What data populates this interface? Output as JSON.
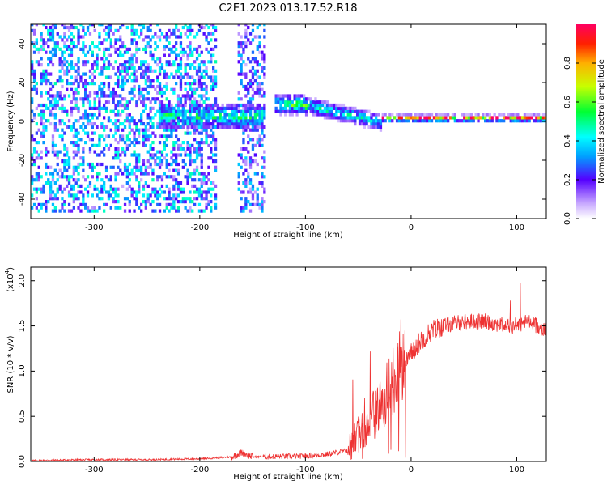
{
  "title": "C2E1.2023.013.17.52.R18",
  "chart_data": [
    {
      "type": "heatmap",
      "xlabel": "Height of straight line (km)",
      "ylabel": "Frequency (Hz)",
      "xlim": [
        -360,
        128
      ],
      "ylim": [
        -50,
        50
      ],
      "xticks": [
        -300,
        -200,
        -100,
        0,
        100
      ],
      "yticks": [
        -40,
        -20,
        0,
        20,
        40
      ],
      "colorbar": {
        "label": "Normalized spectral amplitude",
        "range": [
          0,
          1
        ],
        "ticks": [
          "0.0",
          "0.2",
          "0.4",
          "0.6",
          "0.8"
        ]
      },
      "bands": [
        {
          "x": [
            -360,
            -185
          ],
          "level": 0.25,
          "spread": 50
        },
        {
          "x": [
            -165,
            -140
          ],
          "level": 0.2,
          "spread": 50
        },
        {
          "x": [
            -240,
            -140
          ],
          "level": 0.5,
          "spread": 8
        },
        {
          "x": [
            -130,
            -100
          ],
          "level": 0.55,
          "spread": 6
        },
        {
          "x": [
            -100,
            -30
          ],
          "level": 0.45,
          "spread": 5
        },
        {
          "x": [
            -30,
            128
          ],
          "level": 0.95,
          "spread": 2
        }
      ],
      "grid": false
    },
    {
      "type": "line",
      "xlabel": "Height of straight line (km)",
      "ylabel": "SNR (10 * v/v)",
      "scale_label": "(x10",
      "scale_exp": "4",
      "xlim": [
        -360,
        128
      ],
      "ylim": [
        0,
        2.15
      ],
      "xticks": [
        -300,
        -200,
        -100,
        0,
        100
      ],
      "yticks": [
        "0.0",
        "0.5",
        "1.0",
        "1.5",
        "2.0"
      ],
      "series": [
        {
          "color": "#ee3333",
          "x": [
            -360,
            -300,
            -250,
            -200,
            -170,
            -160,
            -150,
            -100,
            -80,
            -60,
            -50,
            -40,
            -30,
            -20,
            -10,
            0,
            10,
            20,
            30,
            50,
            70,
            90,
            100,
            110,
            120,
            128
          ],
          "y": [
            0.01,
            0.02,
            0.02,
            0.03,
            0.05,
            0.1,
            0.05,
            0.06,
            0.08,
            0.12,
            0.3,
            0.45,
            0.6,
            0.8,
            1.05,
            1.2,
            1.35,
            1.45,
            1.5,
            1.55,
            1.55,
            1.5,
            1.5,
            1.55,
            1.5,
            1.45
          ]
        }
      ],
      "grid": false
    }
  ]
}
